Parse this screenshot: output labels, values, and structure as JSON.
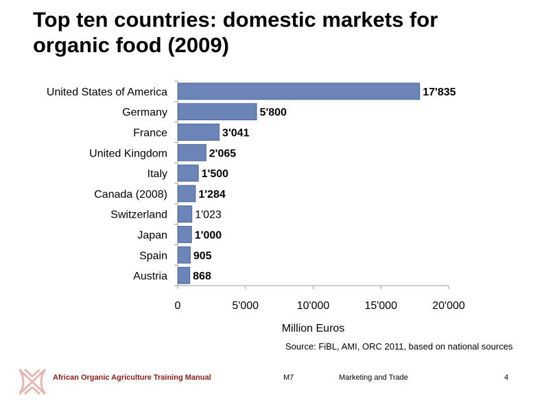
{
  "title": {
    "line1": "Top ten countries: domestic markets for",
    "line2": "organic food (2009)"
  },
  "chart_data": {
    "type": "bar",
    "orientation": "horizontal",
    "categories": [
      "United States of America",
      "Germany",
      "France",
      "United Kingdom",
      "Italy",
      "Canada (2008)",
      "Switzerland",
      "Japan",
      "Spain",
      "Austria"
    ],
    "values": [
      17835,
      5800,
      3041,
      2065,
      1500,
      1284,
      1023,
      1000,
      905,
      868
    ],
    "value_labels": [
      "17'835",
      "5'800",
      "3'041",
      "2'065",
      "1'500",
      "1'284",
      "1'023",
      "1'000",
      "905",
      "868"
    ],
    "value_label_bold": [
      true,
      true,
      true,
      true,
      true,
      true,
      false,
      true,
      true,
      true
    ],
    "xlabel": "Million Euros",
    "xlim": [
      0,
      20000
    ],
    "xticks": [
      0,
      5000,
      10000,
      15000,
      20000
    ],
    "xtick_labels": [
      "0",
      "5'000",
      "10'000",
      "15'000",
      "20'000"
    ],
    "grid": false,
    "bar_color": "#6b85b8",
    "bar_edge_color": "#4a6596"
  },
  "source": "Source: FiBL, AMI, ORC  2011, based on national sources",
  "footer": {
    "manual": "African Organic Agriculture Training Manual",
    "module": "M7",
    "topic": "Marketing and Trade",
    "page": "4"
  },
  "colors": {
    "footer_accent": "#8b1a1a",
    "logo": "#e6b7b0"
  },
  "logo_icon": "aoatm-logo-icon"
}
